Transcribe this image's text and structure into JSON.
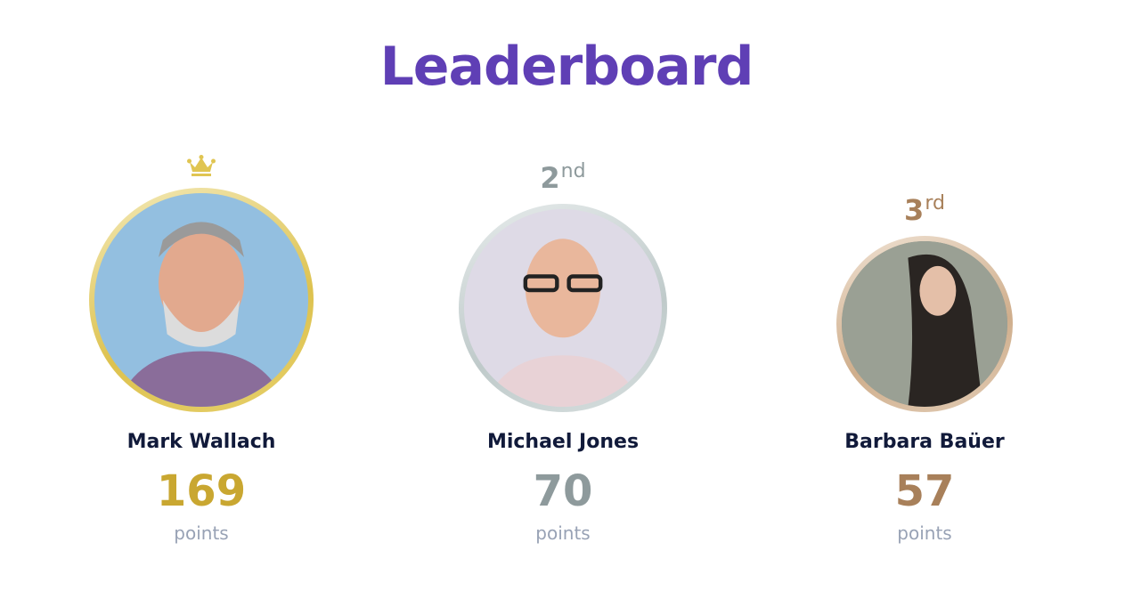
{
  "title": "Leaderboard",
  "players": [
    {
      "rank": "1",
      "rank_suffix": "",
      "name": "Mark Wallach",
      "score": "169",
      "unit": "points",
      "color": "#c9a731",
      "ring": "#e0c552",
      "photo_bg": "#93bfe0",
      "icon": "crown-icon"
    },
    {
      "rank": "2",
      "rank_suffix": "nd",
      "name": "Michael Jones",
      "score": "70",
      "unit": "points",
      "color": "#8e9a9c",
      "ring": "#c5cfd0",
      "photo_bg": "#dedae6"
    },
    {
      "rank": "3",
      "rank_suffix": "rd",
      "name": "Barbara Baüer",
      "score": "57",
      "unit": "points",
      "color": "#a8805a",
      "ring": "#d2b394",
      "photo_bg": "#8a8f86"
    }
  ]
}
